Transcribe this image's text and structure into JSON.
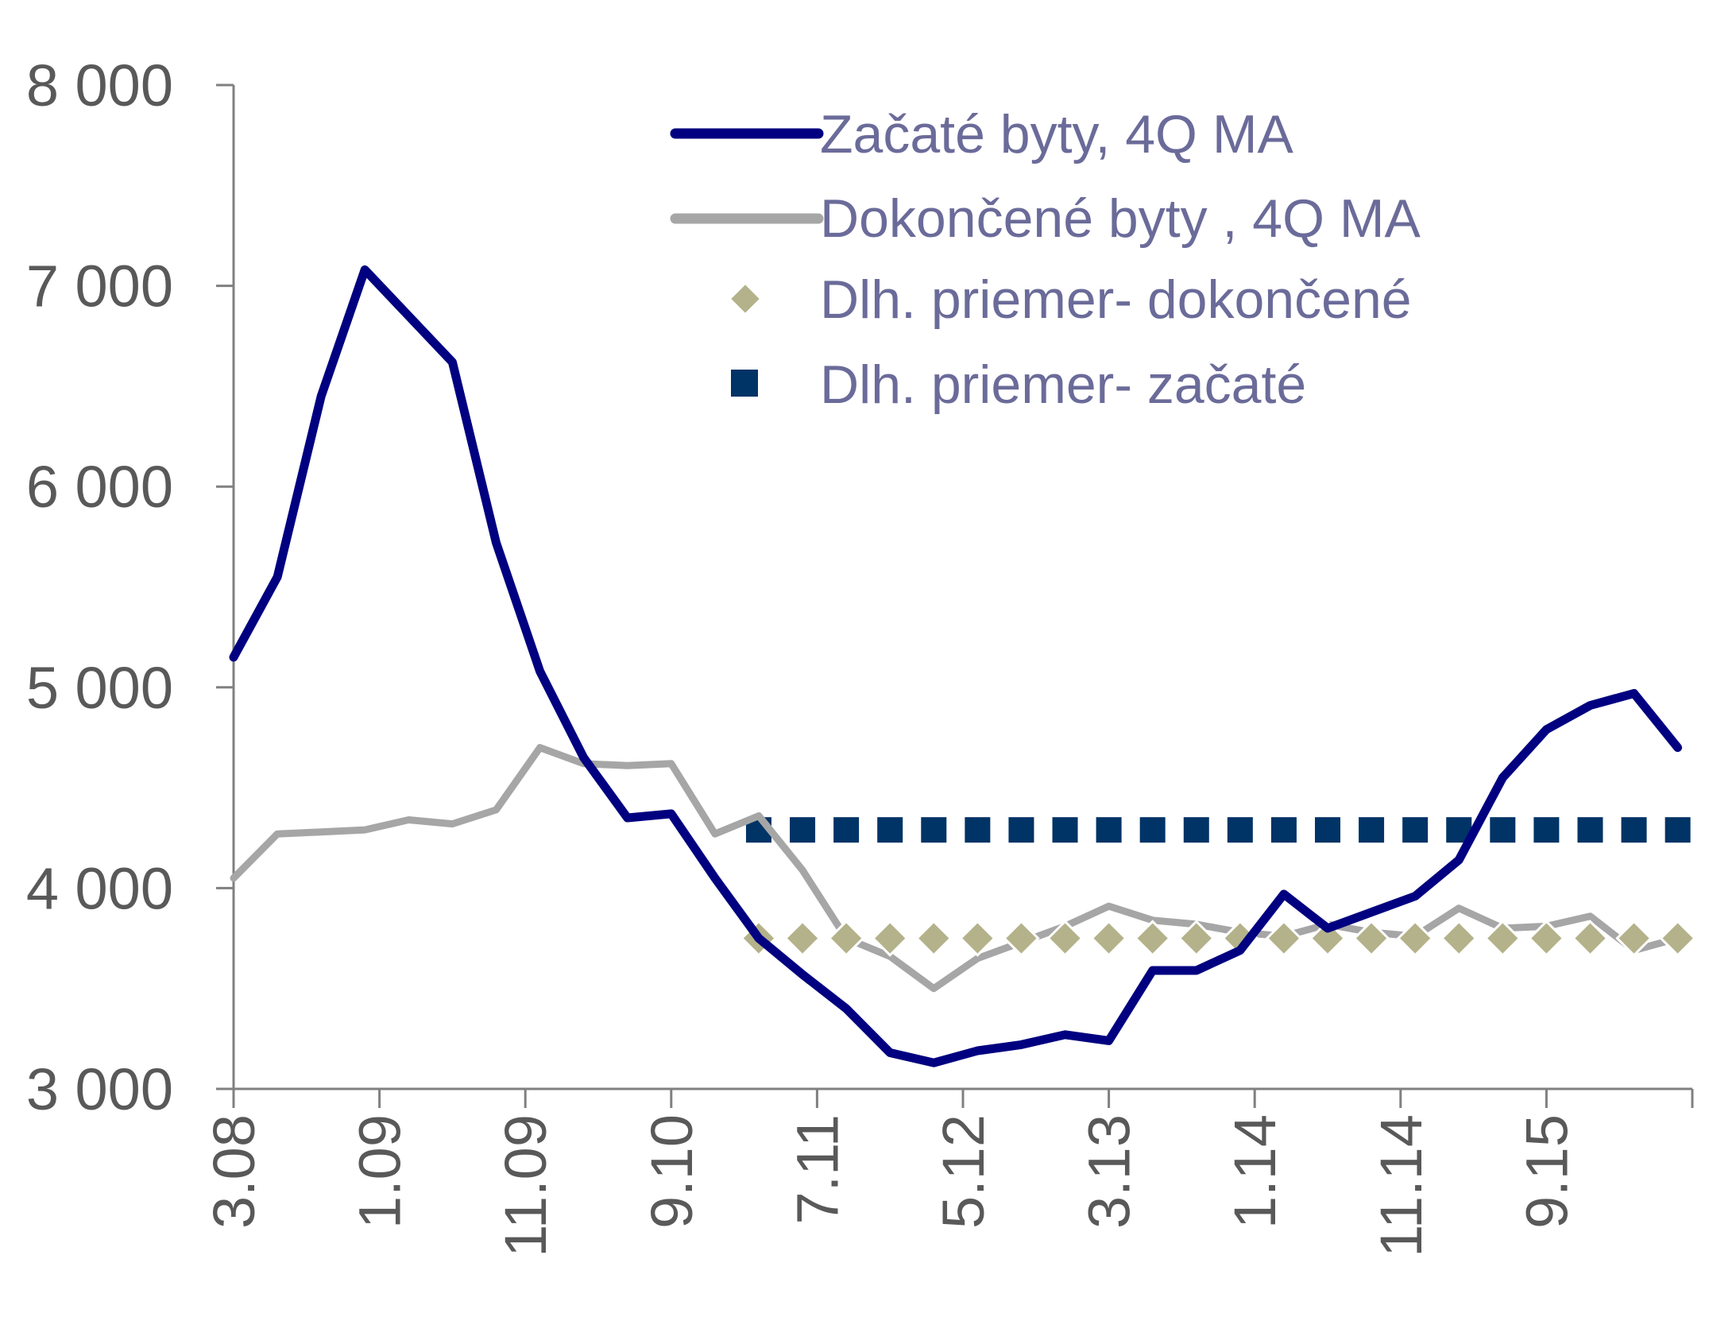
{
  "chart_data": {
    "type": "line",
    "title": "",
    "xlabel": "",
    "ylabel": "",
    "ylim": [
      3000,
      8000
    ],
    "y_ticks": [
      "3 000",
      "4 000",
      "5 000",
      "6 000",
      "7 000",
      "8 000"
    ],
    "y_tick_values": [
      3000,
      4000,
      5000,
      6000,
      7000,
      8000
    ],
    "x_tick_labels": [
      "3.08",
      "1.09",
      "11.09",
      "9.10",
      "7.11",
      "5.12",
      "3.13",
      "1.14",
      "11.14",
      "9.15"
    ],
    "x_tick_indices": [
      0,
      10,
      20,
      30,
      40,
      50,
      60,
      70,
      80,
      90
    ],
    "x_count": 101,
    "legend_position": "top-right",
    "grid": false,
    "series": [
      {
        "name": "Začaté byty, 4Q MA",
        "style": "line",
        "color": "#000080",
        "points": [
          [
            0,
            5150
          ],
          [
            3,
            5550
          ],
          [
            6,
            6450
          ],
          [
            9,
            7080
          ],
          [
            12,
            6850
          ],
          [
            15,
            6620
          ],
          [
            18,
            5720
          ],
          [
            21,
            5080
          ],
          [
            24,
            4650
          ],
          [
            27,
            4350
          ],
          [
            30,
            4370
          ],
          [
            33,
            4050
          ],
          [
            36,
            3750
          ],
          [
            39,
            3570
          ],
          [
            42,
            3400
          ],
          [
            45,
            3180
          ],
          [
            48,
            3130
          ],
          [
            51,
            3190
          ],
          [
            54,
            3220
          ],
          [
            57,
            3270
          ],
          [
            60,
            3240
          ],
          [
            63,
            3590
          ],
          [
            66,
            3590
          ],
          [
            69,
            3690
          ],
          [
            72,
            3970
          ],
          [
            75,
            3800
          ],
          [
            78,
            3880
          ],
          [
            81,
            3960
          ],
          [
            84,
            4140
          ],
          [
            87,
            4550
          ],
          [
            90,
            4790
          ],
          [
            93,
            4910
          ],
          [
            96,
            4970
          ],
          [
            99,
            4700
          ]
        ]
      },
      {
        "name": "Dokončené byty , 4Q MA",
        "style": "line",
        "color": "#a6a6a6",
        "points": [
          [
            0,
            4050
          ],
          [
            3,
            4270
          ],
          [
            6,
            4280
          ],
          [
            9,
            4290
          ],
          [
            12,
            4340
          ],
          [
            15,
            4320
          ],
          [
            18,
            4390
          ],
          [
            21,
            4700
          ],
          [
            24,
            4620
          ],
          [
            27,
            4610
          ],
          [
            30,
            4620
          ],
          [
            33,
            4270
          ],
          [
            36,
            4360
          ],
          [
            39,
            4090
          ],
          [
            42,
            3750
          ],
          [
            45,
            3660
          ],
          [
            48,
            3500
          ],
          [
            51,
            3650
          ],
          [
            54,
            3730
          ],
          [
            57,
            3810
          ],
          [
            60,
            3910
          ],
          [
            63,
            3840
          ],
          [
            66,
            3820
          ],
          [
            69,
            3780
          ],
          [
            72,
            3760
          ],
          [
            75,
            3820
          ],
          [
            78,
            3780
          ],
          [
            81,
            3760
          ],
          [
            84,
            3900
          ],
          [
            87,
            3800
          ],
          [
            90,
            3810
          ],
          [
            93,
            3860
          ],
          [
            96,
            3690
          ],
          [
            99,
            3750
          ]
        ]
      },
      {
        "name": "Dlh. priemer- dokončené",
        "style": "diamond-markers",
        "color": "#b4b28a",
        "x_from": 36,
        "x_to": 99,
        "x_step": 3,
        "value": 3750
      },
      {
        "name": "Dlh. priemer- začaté",
        "style": "square-markers",
        "color": "#003366",
        "x_from": 36,
        "x_to": 99,
        "x_step": 3,
        "value": 4290
      }
    ]
  }
}
